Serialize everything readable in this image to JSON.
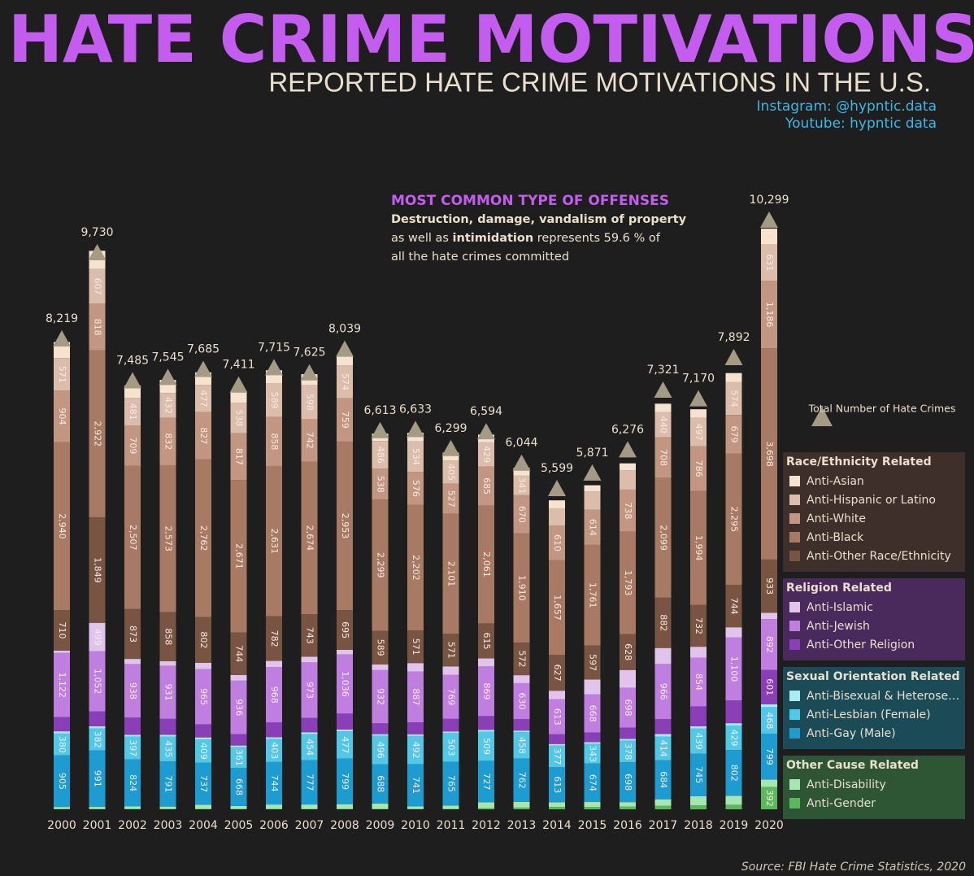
{
  "chart_data": {
    "type": "bar",
    "stacked": true,
    "title": "HATE CRIME MOTIVATIONS",
    "subtitle": "REPORTED HATE CRIME MOTIVATIONS IN THE U.S.",
    "credits": [
      "Instagram: @hypntic.data",
      "Youtube: hypntic data"
    ],
    "source": "Source: FBI Hate Crime Statistics, 2020",
    "annotation": {
      "heading": "MOST COMMON TYPE OF OFFENSES",
      "lines": [
        [
          {
            "text": "Destruction, damage, vandalism of property",
            "bold": true
          }
        ],
        [
          {
            "text": "as well as ",
            "bold": false
          },
          {
            "text": "intimidation",
            "bold": true
          },
          {
            "text": " represents 59.6 % of",
            "bold": false
          }
        ],
        [
          {
            "text": "all the hate crimes committed",
            "bold": false
          }
        ]
      ]
    },
    "categories": [
      "2000",
      "2001",
      "2002",
      "2003",
      "2004",
      "2005",
      "2006",
      "2007",
      "2008",
      "2009",
      "2010",
      "2011",
      "2012",
      "2013",
      "2014",
      "2015",
      "2016",
      "2017",
      "2018",
      "2019",
      "2020"
    ],
    "totals": {
      "name": "Total Number of Hate Crimes",
      "color": "#a59a84",
      "values": [
        8219,
        9730,
        7485,
        7545,
        7685,
        7411,
        7715,
        7625,
        8039,
        6613,
        6633,
        6299,
        6594,
        6044,
        5599,
        5871,
        6276,
        7321,
        7170,
        7892,
        10299
      ],
      "value_labels": [
        "8,219",
        "9,730",
        "7,485",
        "7,545",
        "7,685",
        "7,411",
        "7,715",
        "7,625",
        "8,039",
        "6,613",
        "6,633",
        "6,299",
        "6,594",
        "6,044",
        "5,599",
        "5,871",
        "6,276",
        "7,321",
        "7,170",
        "7,892",
        "10,299"
      ]
    },
    "groups": [
      {
        "name": "Race/Ethnicity Related",
        "color": "#3f2f2a",
        "series": [
          12,
          11,
          10,
          9,
          8
        ]
      },
      {
        "name": "Religion Related",
        "color": "#4a2a5c",
        "series": [
          7,
          6,
          5
        ]
      },
      {
        "name": "Sexual Orientation Related",
        "color": "#1b4b57",
        "series": [
          4,
          3,
          2
        ]
      },
      {
        "name": "Other Cause Related",
        "color": "#2e5634",
        "series": [
          1,
          0
        ]
      }
    ],
    "series": [
      {
        "name": "Anti-Gender",
        "color": "#5cb85c",
        "values": [
          5,
          5,
          5,
          5,
          5,
          5,
          5,
          5,
          5,
          5,
          5,
          5,
          20,
          30,
          40,
          40,
          50,
          60,
          70,
          80,
          392
        ],
        "value_labels": [
          null,
          null,
          null,
          null,
          null,
          null,
          null,
          null,
          null,
          null,
          null,
          null,
          null,
          null,
          null,
          null,
          null,
          null,
          null,
          null,
          "392"
        ]
      },
      {
        "name": "Anti-Disability",
        "color": "#a8e6b0",
        "values": [
          36,
          37,
          45,
          43,
          73,
          53,
          79,
          79,
          85,
          97,
          46,
          61,
          102,
          99,
          84,
          88,
          76,
          116,
          159,
          157,
          130
        ],
        "value_labels": [
          null,
          null,
          null,
          null,
          null,
          null,
          null,
          null,
          null,
          null,
          null,
          null,
          null,
          null,
          null,
          null,
          null,
          null,
          null,
          null,
          null
        ]
      },
      {
        "name": "Anti-Gay (Male)",
        "color": "#1c9cd0",
        "values": [
          905,
          991,
          824,
          791,
          737,
          668,
          744,
          777,
          799,
          688,
          741,
          765,
          727,
          762,
          613,
          674,
          698,
          684,
          745,
          802,
          799
        ],
        "value_labels": [
          "905",
          "991",
          "824",
          "791",
          "737",
          "668",
          "744",
          "777",
          "799",
          "688",
          "741",
          "765",
          "727",
          "762",
          "613",
          "674",
          "698",
          "684",
          "745",
          "802",
          "799"
        ]
      },
      {
        "name": "Anti-Lesbian (Female)",
        "color": "#52c8e8",
        "values": [
          380,
          382,
          397,
          435,
          409,
          361,
          403,
          454,
          477,
          496,
          492,
          503,
          509,
          458,
          377,
          343,
          378,
          414,
          439,
          429,
          468
        ],
        "value_labels": [
          "380",
          "382",
          "397",
          "435",
          "409",
          "361",
          "403",
          "454",
          "477",
          "496",
          "492",
          "503",
          "509",
          "458",
          "377",
          "343",
          "378",
          "414",
          "439",
          "429",
          "468"
        ]
      },
      {
        "name": "Anti-Bisexual & Heterosexual",
        "color": "#a8ecf5",
        "values": [
          40,
          40,
          35,
          30,
          35,
          30,
          30,
          35,
          30,
          30,
          30,
          30,
          35,
          30,
          30,
          30,
          30,
          45,
          40,
          40,
          50
        ],
        "value_labels": [
          null,
          null,
          null,
          null,
          null,
          null,
          null,
          null,
          null,
          null,
          null,
          null,
          null,
          null,
          null,
          null,
          null,
          null,
          null,
          null,
          null
        ]
      },
      {
        "name": "Anti-Other Religion",
        "color": "#8a3fb8",
        "values": [
          250,
          260,
          300,
          280,
          230,
          200,
          260,
          250,
          280,
          190,
          210,
          220,
          240,
          200,
          170,
          170,
          200,
          260,
          350,
          400,
          601
        ],
        "value_labels": [
          null,
          null,
          null,
          null,
          null,
          null,
          null,
          null,
          null,
          null,
          null,
          null,
          null,
          null,
          null,
          null,
          null,
          null,
          null,
          null,
          "601"
        ]
      },
      {
        "name": "Anti-Jewish",
        "color": "#c07ee0",
        "values": [
          1122,
          1052,
          938,
          931,
          965,
          936,
          968,
          973,
          1036,
          932,
          887,
          769,
          869,
          630,
          613,
          668,
          698,
          966,
          854,
          1100,
          892
        ],
        "value_labels": [
          "1,122",
          "1,052",
          "938",
          "931",
          "965",
          "936",
          "968",
          "973",
          "1,036",
          "932",
          "887",
          "769",
          "869",
          "630",
          "613",
          "668",
          "698",
          "966",
          "854",
          "1,100",
          "892"
        ]
      },
      {
        "name": "Anti-Islamic",
        "color": "#e0c4ec",
        "values": [
          40,
          499,
          90,
          80,
          110,
          100,
          110,
          100,
          80,
          100,
          150,
          150,
          140,
          140,
          150,
          260,
          310,
          280,
          190,
          180,
          110
        ],
        "value_labels": [
          null,
          "499",
          null,
          null,
          null,
          null,
          null,
          null,
          null,
          null,
          null,
          null,
          null,
          null,
          null,
          null,
          null,
          null,
          null,
          null,
          null
        ]
      },
      {
        "name": "Anti-Other Race/Ethnicity",
        "color": "#7a5443",
        "values": [
          710,
          1849,
          873,
          858,
          802,
          744,
          782,
          743,
          695,
          589,
          571,
          571,
          615,
          572,
          627,
          597,
          628,
          882,
          732,
          744,
          933
        ],
        "value_labels": [
          "710",
          "1,849",
          "873",
          "858",
          "802",
          "744",
          "782",
          "743",
          "695",
          "589",
          "571",
          "571",
          "615",
          "572",
          "627",
          "597",
          "628",
          "882",
          "732",
          "744",
          "933"
        ]
      },
      {
        "name": "Anti-Black",
        "color": "#a87a64",
        "values": [
          2940,
          2922,
          2507,
          2573,
          2762,
          2671,
          2631,
          2674,
          2953,
          2299,
          2202,
          2101,
          2061,
          1910,
          1657,
          1761,
          1793,
          2099,
          1994,
          2295,
          3698
        ],
        "value_labels": [
          "2,940",
          "2,922",
          "2,507",
          "2,573",
          "2,762",
          "2,671",
          "2,631",
          "2,674",
          "2,953",
          "2,299",
          "2,202",
          "2,101",
          "2,061",
          "1,910",
          "1,657",
          "1,761",
          "1,793",
          "2,099",
          "1,994",
          "2,295",
          "3,698"
        ]
      },
      {
        "name": "Anti-White",
        "color": "#c39682",
        "values": [
          904,
          818,
          709,
          832,
          827,
          817,
          858,
          742,
          759,
          538,
          576,
          527,
          685,
          670,
          610,
          614,
          738,
          708,
          786,
          679,
          1186
        ],
        "value_labels": [
          "904",
          "818",
          "709",
          "832",
          "827",
          "817",
          "858",
          "742",
          "759",
          "538",
          "576",
          "527",
          "685",
          "670",
          "610",
          "614",
          "738",
          "708",
          "786",
          "679",
          "1,186"
        ]
      },
      {
        "name": "Anti-Hispanic or Latino",
        "color": "#dcbcab",
        "values": [
          571,
          607,
          481,
          432,
          477,
          538,
          589,
          598,
          574,
          486,
          534,
          405,
          429,
          341,
          300,
          320,
          340,
          440,
          497,
          574,
          631
        ],
        "value_labels": [
          "571",
          "607",
          "481",
          "432",
          "477",
          "538",
          "589",
          "598",
          "574",
          "486",
          "534",
          "405",
          "429",
          "341",
          null,
          null,
          null,
          "440",
          "497",
          "574",
          "631"
        ]
      },
      {
        "name": "Anti-Asian",
        "color": "#f5e3cf",
        "values": [
          280,
          320,
          220,
          230,
          220,
          200,
          230,
          190,
          180,
          130,
          150,
          140,
          130,
          140,
          140,
          110,
          120,
          150,
          150,
          160,
          280
        ],
        "value_labels": [
          null,
          null,
          null,
          null,
          null,
          null,
          null,
          null,
          null,
          null,
          null,
          null,
          null,
          null,
          null,
          null,
          null,
          null,
          null,
          null,
          null
        ]
      }
    ]
  }
}
